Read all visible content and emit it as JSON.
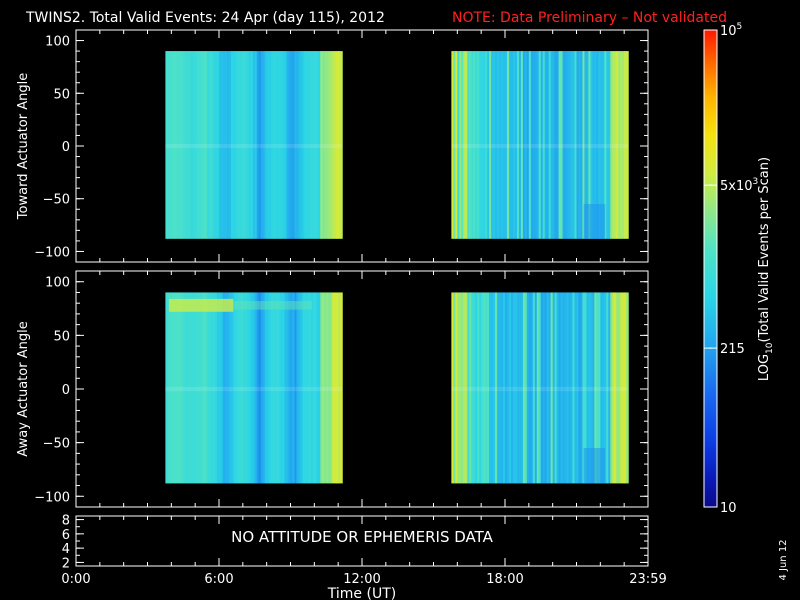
{
  "header": {
    "title": "TWINS2. Total Valid Events: 24 Apr (day 115), 2012",
    "note": "NOTE: Data Preliminary – Not validated",
    "note_color": "#ff2020"
  },
  "footer": {
    "xlabel": "Time (UT)",
    "date_stamp": "4 Jun 12"
  },
  "panels": {
    "nodata_text": "NO ATTITUDE OR EPHEMERIS DATA"
  },
  "colorbar": {
    "label": "LOG10(Total Valid Events per Scan)",
    "label_prefix": "LOG",
    "label_sub": "10",
    "label_rest": "(Total Valid Events per Scan)",
    "scale": "log",
    "range": [
      10,
      100000
    ],
    "ticks": [
      {
        "value": 10,
        "label": "10"
      },
      {
        "value": 215,
        "label": "215"
      },
      {
        "value": 5000,
        "label": "5x10^3"
      },
      {
        "value": 100000,
        "label": "10^5"
      }
    ]
  },
  "chart_data": [
    {
      "type": "heatmap",
      "title": "TWINS2. Total Valid Events: 24 Apr (day 115), 2012",
      "ylabel": "Toward Actuator Angle",
      "xlabel": "",
      "xlim": [
        "0:00",
        "24:00"
      ],
      "ylim": [
        -110,
        110
      ],
      "yticks": [
        "100",
        "50",
        "0",
        "−50",
        "−100"
      ],
      "angle_range": [
        -88,
        90
      ],
      "value_units": "LOG10 events per scan",
      "intervals": [
        {
          "start": "3:45",
          "end": "11:10",
          "mean_level": "~300–900 (cyan), peaks ~5x10^3 near 10:30–11:00"
        },
        {
          "start": "15:45",
          "end": "23:10",
          "mean_level": "~200–600 (blue–cyan), stripes up to ~1x10^4 near 16:00 and 23:00"
        }
      ]
    },
    {
      "type": "heatmap",
      "ylabel": "Away Actuator Angle",
      "xlabel": "",
      "xlim": [
        "0:00",
        "24:00"
      ],
      "ylim": [
        -110,
        110
      ],
      "yticks": [
        "100",
        "50",
        "0",
        "−50",
        "−100"
      ],
      "angle_range": [
        -88,
        90
      ],
      "value_units": "LOG10 events per scan",
      "intervals": [
        {
          "start": "3:45",
          "end": "11:10",
          "mean_level": "~300–700 (cyan), band ~5x10^3 near +78° at 4:00–6:30"
        },
        {
          "start": "15:45",
          "end": "23:10",
          "mean_level": "~200–600 (blue–cyan), stripes up to ~1x10^4 near 16:00 and 23:00"
        }
      ]
    },
    {
      "type": "line",
      "xlabel": "Time (UT)",
      "xlim": [
        "0:00",
        "24:00"
      ],
      "ylim": [
        1.5,
        8.5
      ],
      "yticks": [
        "8",
        "6",
        "4",
        "2"
      ],
      "xticks": [
        "0:00",
        "6:00",
        "12:00",
        "18:00",
        "23:59"
      ],
      "annotation": "NO ATTITUDE OR EPHEMERIS DATA",
      "series": []
    }
  ]
}
